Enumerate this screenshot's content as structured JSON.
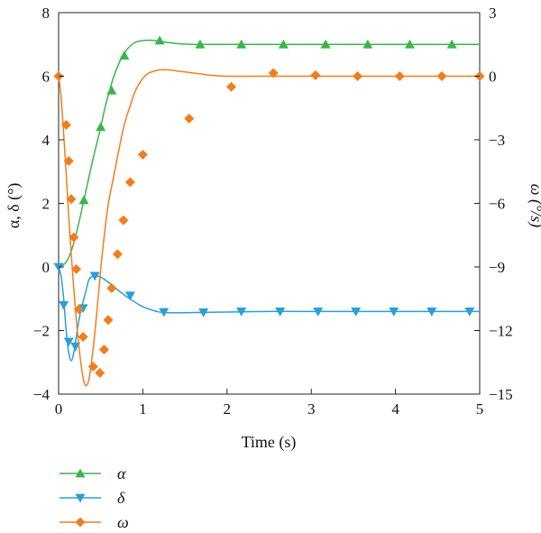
{
  "chart_data": {
    "type": "line",
    "xlabel": "Time (s)",
    "ylabel_left": "α, δ (°)",
    "ylabel_right": "ω (°/s)",
    "xlim": [
      0,
      5
    ],
    "ylim_left": [
      -4,
      8
    ],
    "ylim_right": [
      -15,
      3
    ],
    "xticks": [
      "0",
      "1",
      "2",
      "3",
      "4",
      "5"
    ],
    "yticks_left": [
      "−4",
      "−2",
      "0",
      "2",
      "4",
      "6",
      "8"
    ],
    "yticks_right": [
      "−15",
      "−12",
      "−9",
      "−6",
      "−3",
      "0",
      "3"
    ],
    "grid": false,
    "legend_position": "bottom-left",
    "series": [
      {
        "name": "α",
        "axis": "left",
        "color": "#3cb44b",
        "marker": "triangle-up",
        "x": [
          0,
          0.05,
          0.1,
          0.15,
          0.2,
          0.25,
          0.3,
          0.35,
          0.4,
          0.45,
          0.5,
          0.55,
          0.6,
          0.65,
          0.7,
          0.75,
          0.8,
          0.85,
          0.9,
          0.95,
          1.0,
          1.05,
          1.1,
          1.15,
          1.2,
          1.25,
          1.3,
          1.4,
          1.5,
          1.6,
          1.7,
          1.8,
          2.0,
          2.2,
          2.5,
          3.0,
          3.5,
          4.0,
          4.5,
          5.0
        ],
        "values": [
          0,
          0.05,
          0.2,
          0.5,
          0.95,
          1.5,
          2.1,
          2.7,
          3.3,
          3.85,
          4.4,
          5.0,
          5.5,
          5.95,
          6.3,
          6.6,
          6.8,
          6.95,
          7.05,
          7.1,
          7.12,
          7.13,
          7.13,
          7.12,
          7.1,
          7.08,
          7.06,
          7.03,
          7.01,
          7.0,
          7.0,
          7.0,
          7.0,
          7.0,
          7.0,
          7.0,
          7.0,
          7.0,
          7.0,
          7.0
        ],
        "markers_x": [
          0.3,
          0.5,
          0.63,
          0.78,
          1.2,
          1.68,
          2.17,
          2.67,
          3.17,
          3.67,
          4.17,
          4.67
        ],
        "markers_y": [
          2.1,
          4.4,
          5.55,
          6.65,
          7.12,
          7.0,
          7.0,
          7.0,
          7.0,
          7.0,
          7.0,
          7.0
        ]
      },
      {
        "name": "δ",
        "axis": "left",
        "color": "#2a9fd8",
        "marker": "triangle-down",
        "x": [
          0,
          0.03,
          0.06,
          0.09,
          0.12,
          0.15,
          0.18,
          0.21,
          0.24,
          0.27,
          0.3,
          0.33,
          0.36,
          0.4,
          0.45,
          0.5,
          0.55,
          0.6,
          0.7,
          0.8,
          0.9,
          1.0,
          1.1,
          1.2,
          1.3,
          1.5,
          1.7,
          2.0,
          2.5,
          3.0,
          3.5,
          4.0,
          4.5,
          5.0
        ],
        "values": [
          0,
          -0.3,
          -1.0,
          -2.0,
          -2.7,
          -2.95,
          -2.7,
          -2.2,
          -1.7,
          -1.3,
          -1.0,
          -0.7,
          -0.4,
          -0.3,
          -0.28,
          -0.32,
          -0.4,
          -0.5,
          -0.72,
          -0.92,
          -1.1,
          -1.25,
          -1.35,
          -1.42,
          -1.44,
          -1.44,
          -1.43,
          -1.42,
          -1.4,
          -1.4,
          -1.4,
          -1.4,
          -1.4,
          -1.4
        ],
        "markers_x": [
          0,
          0.06,
          0.12,
          0.2,
          0.29,
          0.43,
          0.85,
          1.25,
          1.72,
          2.17,
          2.63,
          3.08,
          3.53,
          3.98,
          4.43,
          4.88
        ],
        "markers_y": [
          0,
          -1.2,
          -2.35,
          -2.5,
          -1.3,
          -0.28,
          -0.9,
          -1.42,
          -1.43,
          -1.4,
          -1.4,
          -1.4,
          -1.4,
          -1.4,
          -1.4,
          -1.4
        ]
      },
      {
        "name": "ω",
        "axis": "right",
        "color": "#f07e1e",
        "marker": "diamond",
        "x": [
          0,
          0.03,
          0.06,
          0.09,
          0.12,
          0.15,
          0.18,
          0.21,
          0.24,
          0.27,
          0.3,
          0.33,
          0.36,
          0.39,
          0.42,
          0.45,
          0.48,
          0.51,
          0.54,
          0.57,
          0.6,
          0.65,
          0.7,
          0.75,
          0.8,
          0.85,
          0.9,
          0.95,
          1.0,
          1.05,
          1.1,
          1.2,
          1.3,
          1.4,
          1.5,
          1.6,
          1.7,
          1.8,
          2.0,
          2.5,
          3.0,
          3.5,
          4.0,
          4.5,
          5.0
        ],
        "values": [
          0,
          -1.0,
          -2.7,
          -4.6,
          -6.6,
          -8.4,
          -10.0,
          -11.5,
          -12.7,
          -13.7,
          -14.4,
          -14.6,
          -14.3,
          -13.5,
          -12.5,
          -11.3,
          -10.0,
          -8.7,
          -7.6,
          -6.6,
          -5.8,
          -4.8,
          -3.8,
          -2.8,
          -2.0,
          -1.4,
          -0.8,
          -0.4,
          -0.1,
          0.1,
          0.2,
          0.3,
          0.3,
          0.25,
          0.2,
          0.15,
          0.1,
          0.05,
          0,
          0,
          0,
          0,
          0,
          0,
          0
        ],
        "markers_x": [
          0,
          0.09,
          0.12,
          0.15,
          0.18,
          0.21,
          0.24,
          0.29,
          0.41,
          0.49,
          0.54,
          0.59,
          0.63,
          0.7,
          0.77,
          0.85,
          1.0,
          1.55,
          2.05,
          2.55,
          3.05,
          3.55,
          4.05,
          4.55,
          5.0
        ],
        "markers_y": [
          0,
          -2.3,
          -4.0,
          -5.8,
          -7.6,
          -9.1,
          -11.0,
          -12.3,
          -13.7,
          -14.0,
          -12.9,
          -11.5,
          -10.0,
          -8.4,
          -6.8,
          -5.0,
          -3.7,
          -2.0,
          -0.5,
          0.15,
          0.05,
          0,
          0,
          0,
          0
        ]
      }
    ]
  }
}
